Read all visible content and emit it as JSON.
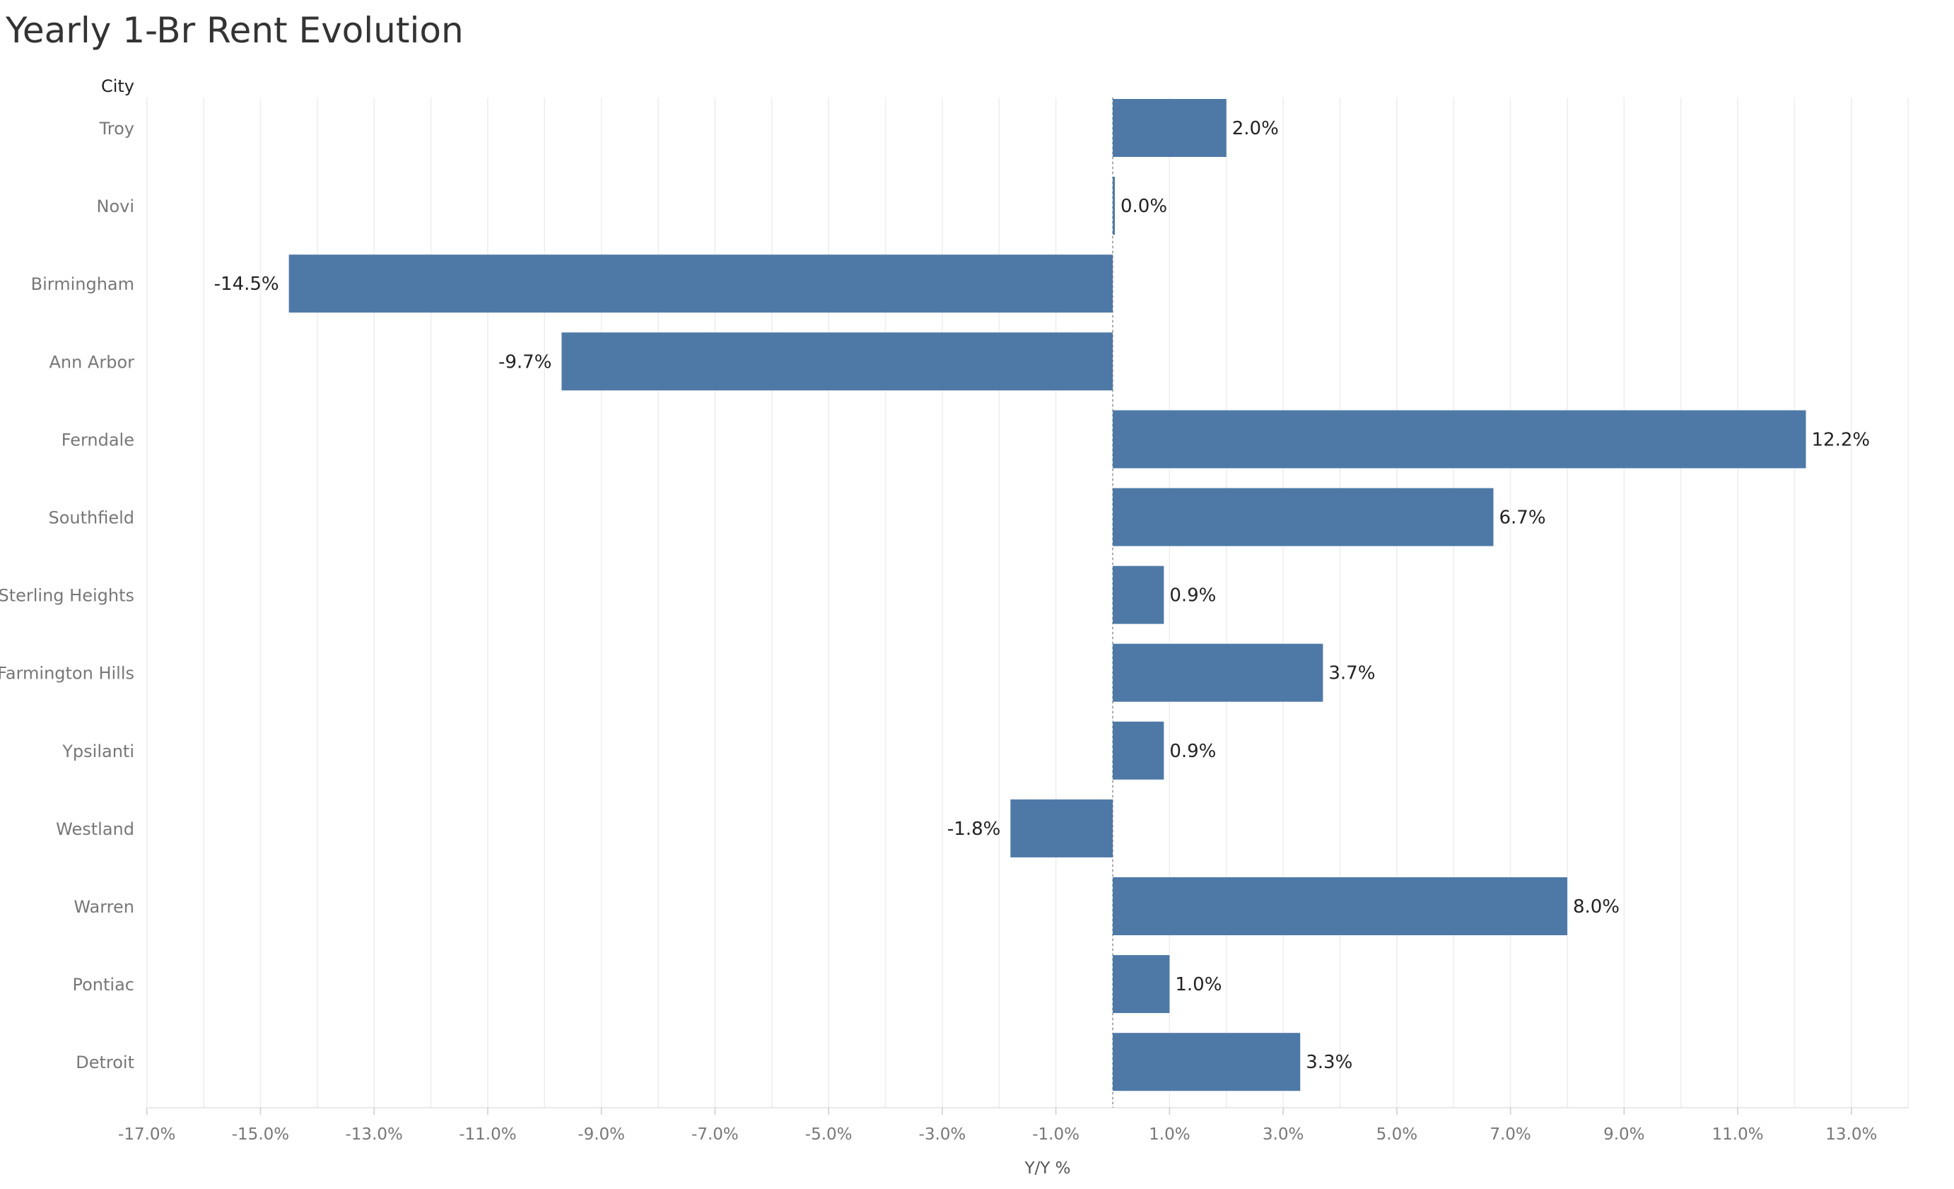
{
  "title": "Yearly 1-Br Rent Evolution",
  "chart_data": {
    "type": "bar",
    "orientation": "horizontal",
    "title": "Yearly 1-Br Rent Evolution",
    "row_header": "City",
    "xlabel": "Y/Y %",
    "ylabel": "",
    "categories": [
      "Troy",
      "Novi",
      "Birmingham",
      "Ann Arbor",
      "Ferndale",
      "Southfield",
      "Sterling Heights",
      "Farmington Hills",
      "Ypsilanti",
      "Westland",
      "Warren",
      "Pontiac",
      "Detroit"
    ],
    "values": [
      2.0,
      0.0,
      -14.5,
      -9.7,
      12.2,
      6.7,
      0.9,
      3.7,
      0.9,
      -1.8,
      8.0,
      1.0,
      3.3
    ],
    "data_labels": [
      "2.0%",
      "0.0%",
      "-14.5%",
      "-9.7%",
      "12.2%",
      "6.7%",
      "0.9%",
      "3.7%",
      "0.9%",
      "-1.8%",
      "8.0%",
      "1.0%",
      "3.3%"
    ],
    "xlim": [
      -17.0,
      14.0
    ],
    "xticks": [
      -17,
      -15,
      -13,
      -11,
      -9,
      -7,
      -5,
      -3,
      -1,
      1,
      3,
      5,
      7,
      9,
      11,
      13
    ],
    "xtick_labels": [
      "-17.0%",
      "-15.0%",
      "-13.0%",
      "-11.0%",
      "-9.0%",
      "-7.0%",
      "-5.0%",
      "-3.0%",
      "-1.0%",
      "1.0%",
      "3.0%",
      "5.0%",
      "7.0%",
      "9.0%",
      "11.0%",
      "13.0%"
    ],
    "grid": true,
    "bar_color": "#4e79a7"
  }
}
